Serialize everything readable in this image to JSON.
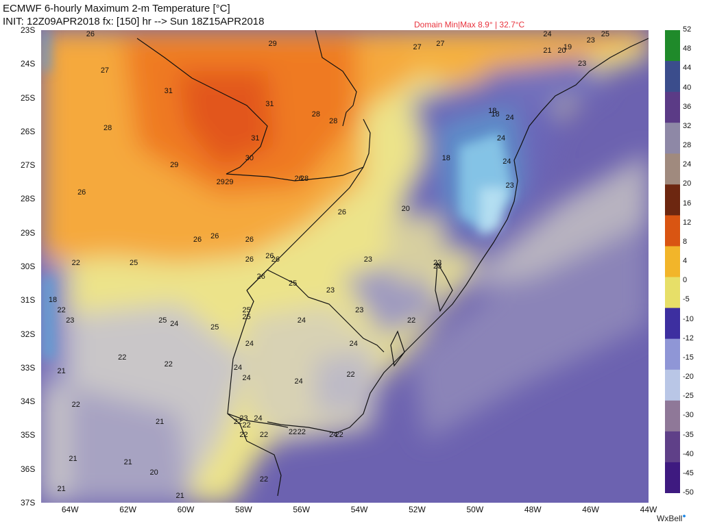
{
  "header": {
    "title": "ECMWF 6-hourly Maximum 2-m Temperature [°C]",
    "init_line": "INIT: 12Z09APR2018 fx: [150] hr --> Sun 18Z15APR2018",
    "domain_minmax": "Domain Min|Max 8.9° | 32.7°C"
  },
  "map": {
    "lat_labels": [
      "23S",
      "24S",
      "25S",
      "26S",
      "27S",
      "28S",
      "29S",
      "30S",
      "31S",
      "32S",
      "33S",
      "34S",
      "35S",
      "36S",
      "37S"
    ],
    "lon_labels": [
      "64W",
      "62W",
      "60W",
      "58W",
      "56W",
      "54W",
      "52W",
      "50W",
      "48W",
      "46W",
      "44W"
    ],
    "station_values": [
      {
        "v": "26",
        "lat": -23.1,
        "lon": -63.3
      },
      {
        "v": "27",
        "lat": -24.2,
        "lon": -62.8
      },
      {
        "v": "31",
        "lat": -24.8,
        "lon": -60.6
      },
      {
        "v": "28",
        "lat": -25.9,
        "lon": -62.7
      },
      {
        "v": "29",
        "lat": -23.4,
        "lon": -57.0
      },
      {
        "v": "31",
        "lat": -25.2,
        "lon": -57.1
      },
      {
        "v": "31",
        "lat": -26.2,
        "lon": -57.6
      },
      {
        "v": "30",
        "lat": -26.8,
        "lon": -57.8
      },
      {
        "v": "29",
        "lat": -27.0,
        "lon": -60.4
      },
      {
        "v": "29",
        "lat": -27.5,
        "lon": -58.8
      },
      {
        "v": "29",
        "lat": -27.5,
        "lon": -58.5
      },
      {
        "v": "26",
        "lat": -27.4,
        "lon": -56.1
      },
      {
        "v": "28",
        "lat": -27.4,
        "lon": -55.9
      },
      {
        "v": "26",
        "lat": -27.8,
        "lon": -63.6
      },
      {
        "v": "28",
        "lat": -25.5,
        "lon": -55.5
      },
      {
        "v": "28",
        "lat": -25.7,
        "lon": -54.9
      },
      {
        "v": "27",
        "lat": -23.5,
        "lon": -52.0
      },
      {
        "v": "27",
        "lat": -23.4,
        "lon": -51.2
      },
      {
        "v": "26",
        "lat": -28.4,
        "lon": -54.6
      },
      {
        "v": "26",
        "lat": -29.2,
        "lon": -59.6
      },
      {
        "v": "26",
        "lat": -29.1,
        "lon": -59.0
      },
      {
        "v": "26",
        "lat": -29.2,
        "lon": -57.8
      },
      {
        "v": "26",
        "lat": -29.8,
        "lon": -57.8
      },
      {
        "v": "26",
        "lat": -29.7,
        "lon": -57.1
      },
      {
        "v": "26",
        "lat": -29.8,
        "lon": -56.9
      },
      {
        "v": "22",
        "lat": -29.9,
        "lon": -63.8
      },
      {
        "v": "25",
        "lat": -29.9,
        "lon": -61.8
      },
      {
        "v": "26",
        "lat": -30.3,
        "lon": -57.4
      },
      {
        "v": "25",
        "lat": -30.5,
        "lon": -56.3
      },
      {
        "v": "23",
        "lat": -30.7,
        "lon": -55.0
      },
      {
        "v": "23",
        "lat": -29.8,
        "lon": -53.7
      },
      {
        "v": "20",
        "lat": -28.3,
        "lon": -52.4
      },
      {
        "v": "18",
        "lat": -26.8,
        "lon": -51.0
      },
      {
        "v": "18",
        "lat": -25.4,
        "lon": -49.4
      },
      {
        "v": "18",
        "lat": -25.5,
        "lon": -49.3
      },
      {
        "v": "24",
        "lat": -25.6,
        "lon": -48.8
      },
      {
        "v": "24",
        "lat": -26.2,
        "lon": -49.1
      },
      {
        "v": "24",
        "lat": -26.9,
        "lon": -48.9
      },
      {
        "v": "23",
        "lat": -27.6,
        "lon": -48.8
      },
      {
        "v": "23",
        "lat": -29.9,
        "lon": -51.3
      },
      {
        "v": "23",
        "lat": -30.0,
        "lon": -51.3
      },
      {
        "v": "24",
        "lat": -22.9,
        "lon": -47.5
      },
      {
        "v": "25",
        "lat": -23.0,
        "lon": -45.5
      },
      {
        "v": "23",
        "lat": -23.3,
        "lon": -46.0
      },
      {
        "v": "21",
        "lat": -23.6,
        "lon": -47.5
      },
      {
        "v": "20",
        "lat": -23.6,
        "lon": -47.0
      },
      {
        "v": "19",
        "lat": -23.5,
        "lon": -46.8
      },
      {
        "v": "23",
        "lat": -24.0,
        "lon": -46.3
      },
      {
        "v": "18",
        "lat": -31.0,
        "lon": -64.6
      },
      {
        "v": "22",
        "lat": -31.3,
        "lon": -64.3
      },
      {
        "v": "23",
        "lat": -31.6,
        "lon": -64.0
      },
      {
        "v": "25",
        "lat": -31.6,
        "lon": -60.8
      },
      {
        "v": "24",
        "lat": -31.7,
        "lon": -60.4
      },
      {
        "v": "25",
        "lat": -31.8,
        "lon": -59.0
      },
      {
        "v": "25",
        "lat": -31.3,
        "lon": -57.9
      },
      {
        "v": "25",
        "lat": -31.5,
        "lon": -57.9
      },
      {
        "v": "24",
        "lat": -31.6,
        "lon": -56.0
      },
      {
        "v": "23",
        "lat": -31.3,
        "lon": -54.0
      },
      {
        "v": "22",
        "lat": -31.6,
        "lon": -52.2
      },
      {
        "v": "24",
        "lat": -32.3,
        "lon": -57.8
      },
      {
        "v": "24",
        "lat": -32.3,
        "lon": -54.2
      },
      {
        "v": "22",
        "lat": -32.7,
        "lon": -62.2
      },
      {
        "v": "22",
        "lat": -32.9,
        "lon": -60.6
      },
      {
        "v": "21",
        "lat": -33.1,
        "lon": -64.3
      },
      {
        "v": "24",
        "lat": -33.0,
        "lon": -58.2
      },
      {
        "v": "24",
        "lat": -33.3,
        "lon": -57.9
      },
      {
        "v": "24",
        "lat": -33.4,
        "lon": -56.1
      },
      {
        "v": "22",
        "lat": -33.2,
        "lon": -54.3
      },
      {
        "v": "22",
        "lat": -34.1,
        "lon": -63.8
      },
      {
        "v": "24",
        "lat": -34.5,
        "lon": -57.5
      },
      {
        "v": "23",
        "lat": -34.5,
        "lon": -58.0
      },
      {
        "v": "22",
        "lat": -34.6,
        "lon": -58.2
      },
      {
        "v": "22",
        "lat": -34.7,
        "lon": -57.9
      },
      {
        "v": "21",
        "lat": -34.6,
        "lon": -60.9
      },
      {
        "v": "22",
        "lat": -34.9,
        "lon": -56.3
      },
      {
        "v": "22",
        "lat": -34.9,
        "lon": -56.0
      },
      {
        "v": "24",
        "lat": -35.0,
        "lon": -54.9
      },
      {
        "v": "22",
        "lat": -35.0,
        "lon": -54.7
      },
      {
        "v": "22",
        "lat": -35.0,
        "lon": -58.0
      },
      {
        "v": "22",
        "lat": -35.0,
        "lon": -57.3
      },
      {
        "v": "21",
        "lat": -35.7,
        "lon": -63.9
      },
      {
        "v": "21",
        "lat": -35.8,
        "lon": -62.0
      },
      {
        "v": "20",
        "lat": -36.1,
        "lon": -61.1
      },
      {
        "v": "21",
        "lat": -36.6,
        "lon": -64.3
      },
      {
        "v": "21",
        "lat": -36.8,
        "lon": -60.2
      },
      {
        "v": "22",
        "lat": -36.3,
        "lon": -57.3
      }
    ],
    "colors": {
      "coast": "#111111",
      "label": "#111111"
    }
  },
  "colorbar": {
    "labels": [
      "52",
      "48",
      "44",
      "40",
      "36",
      "32",
      "28",
      "24",
      "20",
      "16",
      "12",
      "8",
      "4",
      "0",
      "-5",
      "-10",
      "-12",
      "-15",
      "-20",
      "-25",
      "-30",
      "-35",
      "-40",
      "-45",
      "-50"
    ],
    "colors": [
      "#1f8a2a",
      "#3b4d8c",
      "#5b3b86",
      "#8e88a6",
      "#a08a7e",
      "#6d2710",
      "#d95512",
      "#f2b52a",
      "#e7df68",
      "#3d2fa0",
      "#8f96d6",
      "#b9c6e6",
      "#8f7898",
      "#5f4088",
      "#3e1a80"
    ]
  },
  "branding": {
    "text": "WxBell"
  }
}
